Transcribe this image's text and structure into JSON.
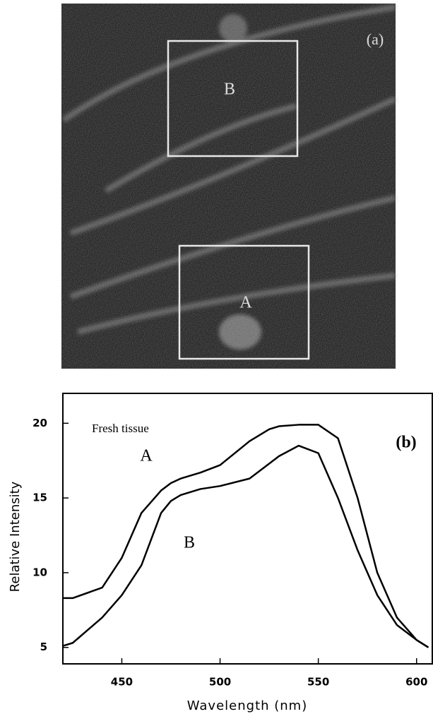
{
  "image_panel": {
    "label": "(a)",
    "regions": [
      "B",
      "A"
    ]
  },
  "chart_data": {
    "type": "line",
    "annotations": [
      "Fresh tissue",
      "(b)"
    ],
    "xlabel": "Wavelength (nm)",
    "ylabel": "Relative Intensity",
    "x": [
      420,
      425,
      440,
      450,
      460,
      470,
      475,
      480,
      490,
      500,
      515,
      525,
      530,
      540,
      550,
      560,
      570,
      580,
      590,
      600,
      606
    ],
    "series": [
      {
        "name": "A",
        "color": "#000000",
        "values": [
          8.3,
          8.3,
          9,
          11,
          14,
          15.5,
          16,
          16.3,
          16.7,
          17.2,
          18.8,
          19.6,
          19.8,
          19.9,
          19.9,
          19,
          15,
          10,
          7,
          5.5,
          5
        ]
      },
      {
        "name": "B",
        "color": "#000000",
        "values": [
          5.1,
          5.3,
          7,
          8.5,
          10.5,
          14,
          14.8,
          15.2,
          15.6,
          15.8,
          16.3,
          17.3,
          17.8,
          18.5,
          18,
          15,
          11.5,
          8.5,
          6.5,
          5.5,
          5
        ]
      }
    ],
    "xlim": [
      420,
      608
    ],
    "ylim": [
      3.9,
      22
    ],
    "xticks": [
      450,
      500,
      550,
      600
    ],
    "yticks": [
      5,
      10,
      15,
      20
    ]
  }
}
